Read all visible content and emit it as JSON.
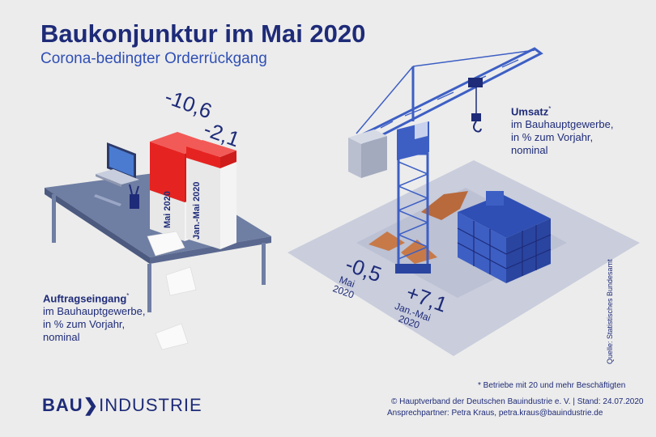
{
  "title": "Baukonjunktur im Mai 2020",
  "subtitle": "Corona-bedingter Orderrückgang",
  "orders": {
    "bar_may": {
      "value": "-10,6",
      "label": "Mai 2020"
    },
    "bar_janmay": {
      "value": "-2,1",
      "label": "Jan.-Mai 2020"
    },
    "heading": "Auftragseingang",
    "heading_mark": "*",
    "line1": "im Bauhauptgewerbe,",
    "line2": "in % zum Vorjahr,",
    "line3": "nominal"
  },
  "revenue": {
    "may": {
      "value": "-0,5",
      "label1": "Mai",
      "label2": "2020"
    },
    "janmay": {
      "value": "+7,1",
      "label1": "Jan.-Mai",
      "label2": "2020"
    },
    "heading": "Umsatz",
    "heading_mark": "*",
    "line1": "im Bauhauptgewerbe,",
    "line2": "in % zum Vorjahr,",
    "line3": "nominal"
  },
  "footnote": "* Betriebe mit 20 und mehr Beschäftigten",
  "source": "Quelle: Statistisches Bundesamt",
  "copyright": "© Hauptverband der Deutschen Bauindustrie e. V. | Stand: 24.07.2020",
  "contact": "Ansprechpartner: Petra Kraus, petra.kraus@bauindustrie.de",
  "logo": {
    "part1": "BAU",
    "part2": "INDUSTRIE"
  },
  "colors": {
    "navy": "#1e2b78",
    "blue": "#3d5fc4",
    "red": "#e52421",
    "background": "#ececec"
  }
}
